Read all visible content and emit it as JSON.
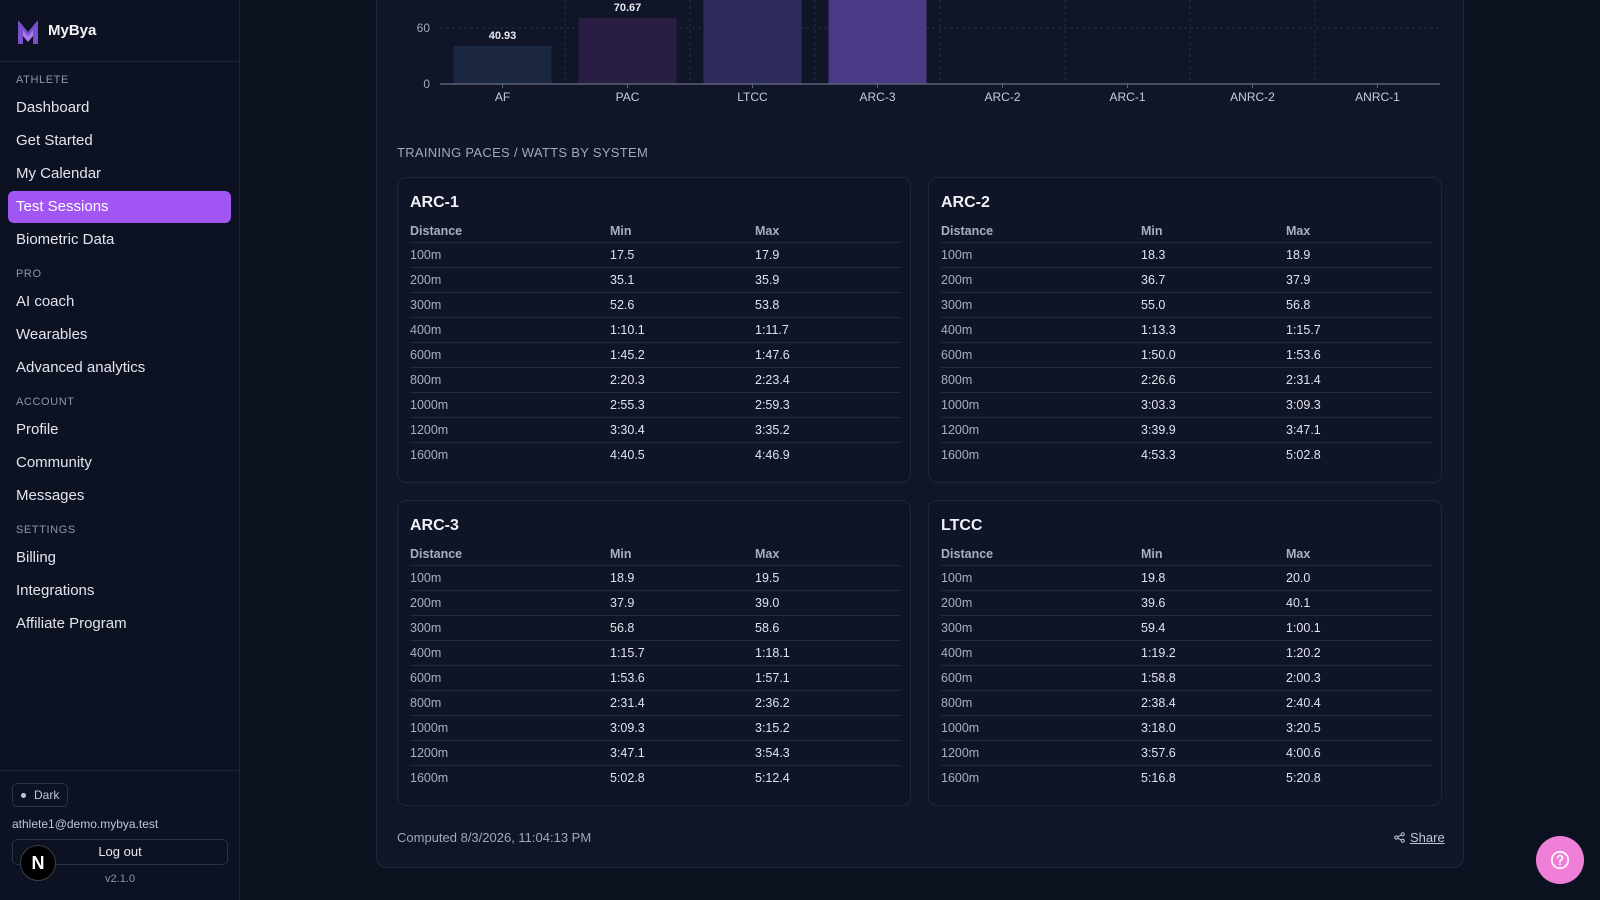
{
  "brand": {
    "name": "MyBya"
  },
  "sidebar": {
    "sections": [
      {
        "title": "ATHLETE",
        "items": [
          "Dashboard",
          "Get Started",
          "My Calendar",
          "Test Sessions",
          "Biometric Data"
        ]
      },
      {
        "title": "PRO",
        "items": [
          "AI coach",
          "Wearables",
          "Advanced analytics"
        ]
      },
      {
        "title": "ACCOUNT",
        "items": [
          "Profile",
          "Community",
          "Messages"
        ]
      },
      {
        "title": "SETTINGS",
        "items": [
          "Billing",
          "Integrations",
          "Affiliate Program"
        ]
      }
    ],
    "active_item": "Test Sessions",
    "theme_label": "Dark",
    "email": "athlete1@demo.mybya.test",
    "logout_label": "Log out",
    "version": "v2.1.0",
    "badge_letter": "N"
  },
  "chart_data": {
    "type": "bar",
    "categories": [
      "AF",
      "PAC",
      "LTCC",
      "ARC-3",
      "ARC-2",
      "ARC-1",
      "ANRC-2",
      "ANRC-1"
    ],
    "values": [
      40.93,
      70.67,
      null,
      null,
      null,
      null,
      null,
      null
    ],
    "yticks": [
      0,
      60
    ],
    "colors": [
      "#1b2640",
      "#2a1d44",
      "#2f2a5c",
      "#4a3a86"
    ]
  },
  "section_title": "TRAINING PACES / WATTS BY SYSTEM",
  "pace_headers": {
    "distance": "Distance",
    "min": "Min",
    "max": "Max"
  },
  "pace_tables": [
    {
      "name": "ARC-1",
      "rows": [
        [
          "100m",
          "17.5",
          "17.9"
        ],
        [
          "200m",
          "35.1",
          "35.9"
        ],
        [
          "300m",
          "52.6",
          "53.8"
        ],
        [
          "400m",
          "1:10.1",
          "1:11.7"
        ],
        [
          "600m",
          "1:45.2",
          "1:47.6"
        ],
        [
          "800m",
          "2:20.3",
          "2:23.4"
        ],
        [
          "1000m",
          "2:55.3",
          "2:59.3"
        ],
        [
          "1200m",
          "3:30.4",
          "3:35.2"
        ],
        [
          "1600m",
          "4:40.5",
          "4:46.9"
        ]
      ]
    },
    {
      "name": "ARC-2",
      "rows": [
        [
          "100m",
          "18.3",
          "18.9"
        ],
        [
          "200m",
          "36.7",
          "37.9"
        ],
        [
          "300m",
          "55.0",
          "56.8"
        ],
        [
          "400m",
          "1:13.3",
          "1:15.7"
        ],
        [
          "600m",
          "1:50.0",
          "1:53.6"
        ],
        [
          "800m",
          "2:26.6",
          "2:31.4"
        ],
        [
          "1000m",
          "3:03.3",
          "3:09.3"
        ],
        [
          "1200m",
          "3:39.9",
          "3:47.1"
        ],
        [
          "1600m",
          "4:53.3",
          "5:02.8"
        ]
      ]
    },
    {
      "name": "ARC-3",
      "rows": [
        [
          "100m",
          "18.9",
          "19.5"
        ],
        [
          "200m",
          "37.9",
          "39.0"
        ],
        [
          "300m",
          "56.8",
          "58.6"
        ],
        [
          "400m",
          "1:15.7",
          "1:18.1"
        ],
        [
          "600m",
          "1:53.6",
          "1:57.1"
        ],
        [
          "800m",
          "2:31.4",
          "2:36.2"
        ],
        [
          "1000m",
          "3:09.3",
          "3:15.2"
        ],
        [
          "1200m",
          "3:47.1",
          "3:54.3"
        ],
        [
          "1600m",
          "5:02.8",
          "5:12.4"
        ]
      ]
    },
    {
      "name": "LTCC",
      "rows": [
        [
          "100m",
          "19.8",
          "20.0"
        ],
        [
          "200m",
          "39.6",
          "40.1"
        ],
        [
          "300m",
          "59.4",
          "1:00.1"
        ],
        [
          "400m",
          "1:19.2",
          "1:20.2"
        ],
        [
          "600m",
          "1:58.8",
          "2:00.3"
        ],
        [
          "800m",
          "2:38.4",
          "2:40.4"
        ],
        [
          "1000m",
          "3:18.0",
          "3:20.5"
        ],
        [
          "1200m",
          "3:57.6",
          "4:00.6"
        ],
        [
          "1600m",
          "5:16.8",
          "5:20.8"
        ]
      ]
    }
  ],
  "computed_text": "Computed 8/3/2026, 11:04:13 PM",
  "share_label": "Share",
  "help_label": "?"
}
